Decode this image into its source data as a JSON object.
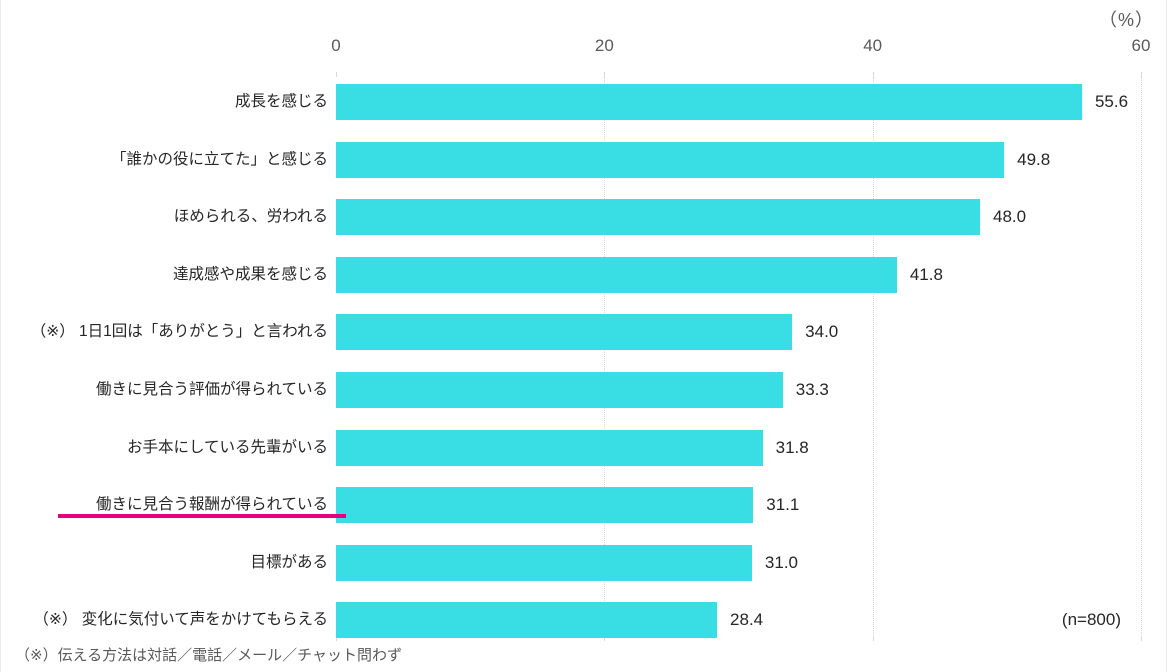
{
  "chart_data": {
    "type": "bar",
    "orientation": "horizontal",
    "title": "",
    "unit_label": "（%）",
    "xlim": [
      0,
      60
    ],
    "axis_ticks": [
      0,
      20,
      40,
      60
    ],
    "grid": "vertical-dotted",
    "legend": "none",
    "bar_color": "#39dde4",
    "categories": [
      "成長を感じる",
      "「誰かの役に立てた」と感じる",
      "ほめられる、労われる",
      "達成感や成果を感じる",
      "（※） 1日1回は「ありがとう」と言われる",
      "働きに見合う評価が得られている",
      "お手本にしている先輩がいる",
      "働きに見合う報酬が得られている",
      "目標がある",
      "（※） 変化に気付いて声をかけてもらえる"
    ],
    "values": [
      55.6,
      49.8,
      48.0,
      41.8,
      34.0,
      33.3,
      31.8,
      31.1,
      31.0,
      28.4
    ],
    "highlight": {
      "category_index": 7,
      "style": "underline",
      "color": "#e4007f"
    },
    "sample_size_label": "(n=800)"
  },
  "footer": {
    "note": "（※）伝える方法は対話／電話／メール／チャット問わず"
  }
}
